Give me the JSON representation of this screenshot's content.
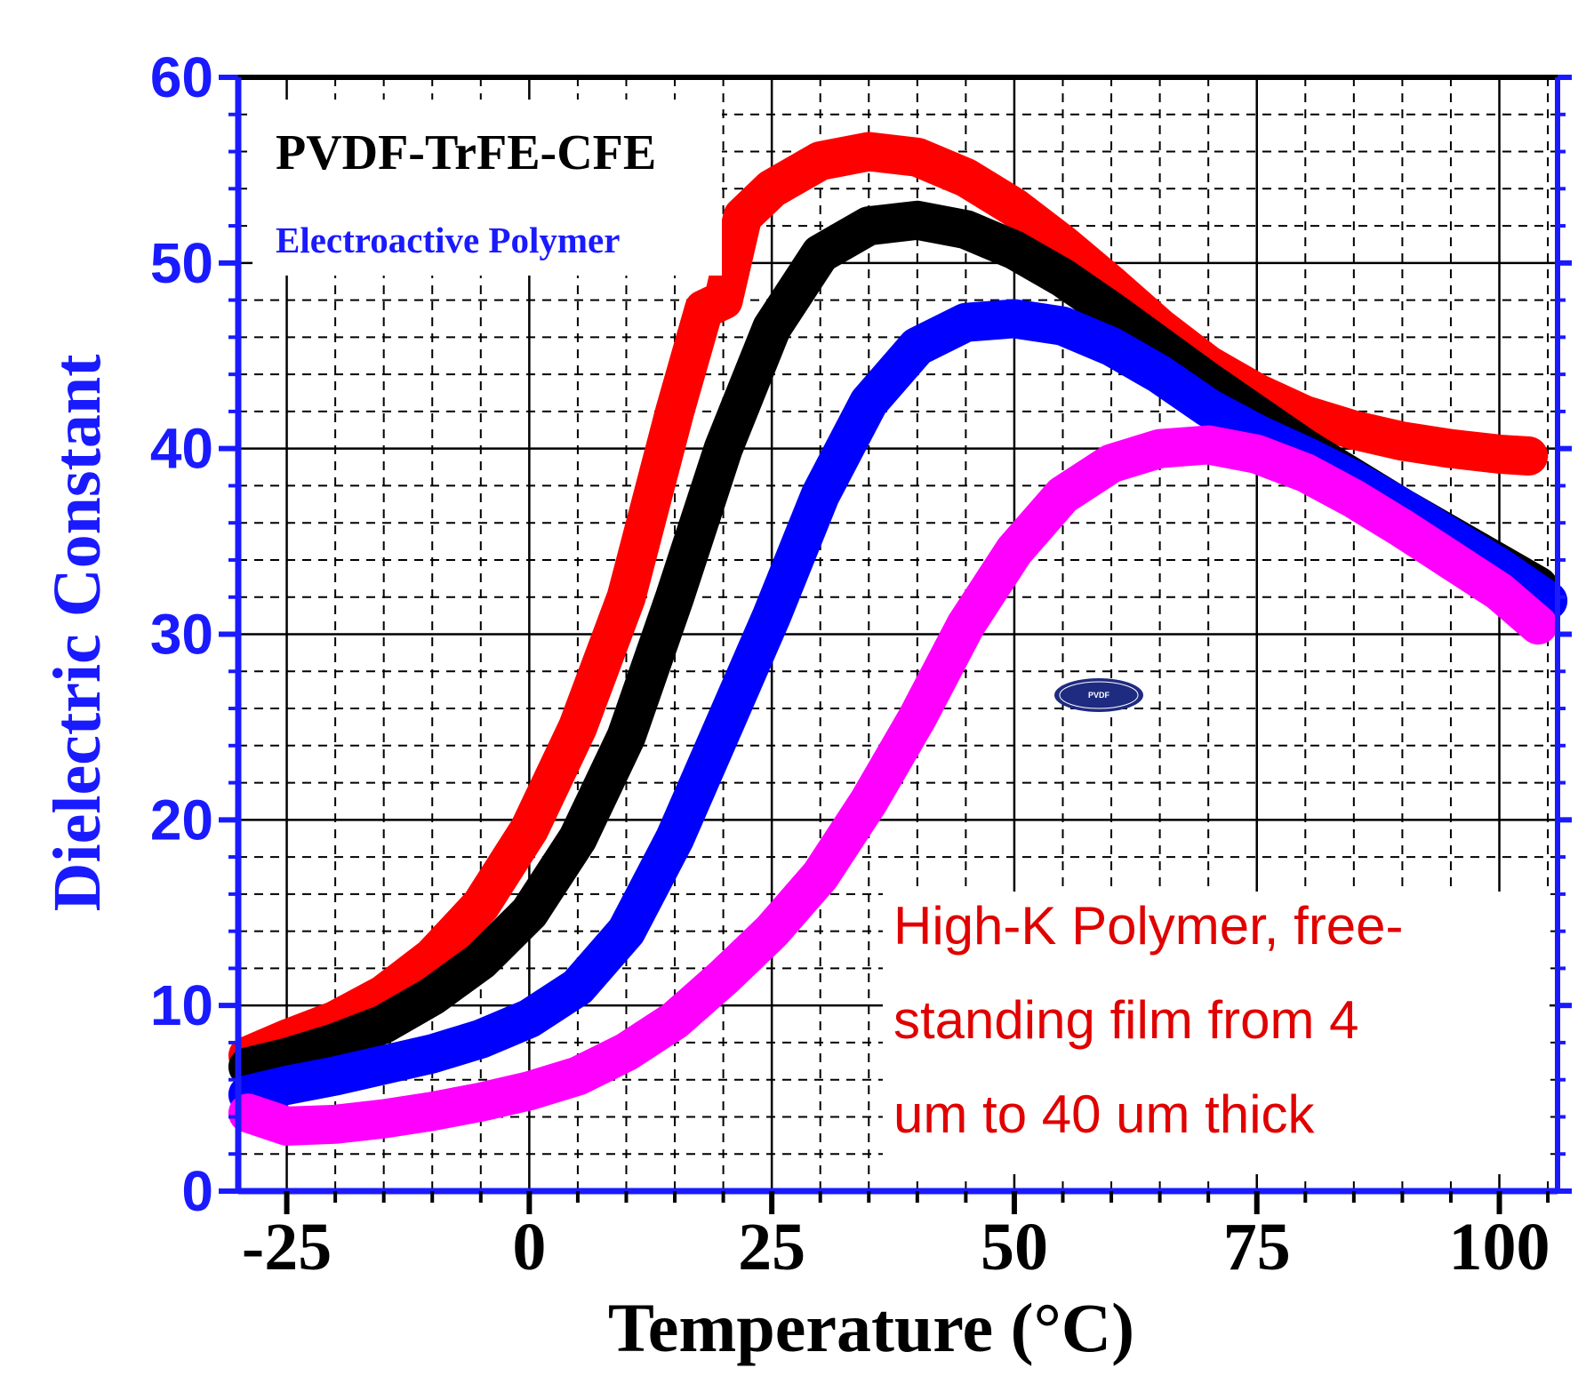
{
  "chart_data": {
    "type": "line",
    "title": "PVDF-TrFE-CFE",
    "subtitle": "Electroactive Polymer",
    "xlabel": "Temperature (°C)",
    "ylabel": "Dielectric Constant",
    "xlim": [
      -30,
      106
    ],
    "ylim": [
      0,
      60
    ],
    "x_ticks": [
      -25,
      0,
      25,
      50,
      75,
      100
    ],
    "x_tick_labels": [
      "-25",
      "0",
      "25",
      "50",
      "75",
      "100"
    ],
    "y_ticks": [
      0,
      10,
      20,
      30,
      40,
      50,
      60
    ],
    "y_tick_labels": [
      "0",
      "10",
      "20",
      "30",
      "40",
      "50",
      "60"
    ],
    "grid": true,
    "annotation": [
      "High-K Polymer, free-",
      "standing film from 4",
      "um to 40 um thick"
    ],
    "watermark": "PVDF",
    "series": [
      {
        "name": "red",
        "color": "#ff0000",
        "x": [
          -29,
          -25,
          -20,
          -15,
          -10,
          -5,
          0,
          5,
          10,
          15,
          18,
          20,
          22,
          25,
          30,
          35,
          40,
          45,
          50,
          55,
          60,
          65,
          70,
          75,
          80,
          85,
          90,
          95,
          100,
          103
        ],
        "y": [
          7.3,
          8.2,
          9.2,
          10.6,
          12.6,
          15.4,
          19.5,
          25,
          32,
          42,
          47.5,
          48,
          52.5,
          54,
          55.5,
          56,
          55.7,
          54.6,
          53,
          51,
          48.8,
          46.5,
          44.5,
          43,
          41.8,
          41,
          40.4,
          40,
          39.7,
          39.6
        ]
      },
      {
        "name": "black",
        "color": "#000000",
        "x": [
          -29,
          -25,
          -20,
          -15,
          -10,
          -5,
          0,
          5,
          10,
          15,
          20,
          25,
          30,
          35,
          40,
          45,
          50,
          55,
          60,
          65,
          70,
          75,
          80,
          85,
          90,
          95,
          100,
          104
        ],
        "y": [
          6.7,
          7.2,
          8,
          9,
          10.5,
          12.4,
          15,
          19,
          24.5,
          32,
          40,
          46.5,
          50.5,
          52,
          52.3,
          51.8,
          50.7,
          49.2,
          47.4,
          45.5,
          43.6,
          41.8,
          40,
          38.4,
          36.8,
          35.3,
          33.8,
          32.6
        ]
      },
      {
        "name": "blue",
        "color": "#0000ff",
        "x": [
          -29,
          -25,
          -20,
          -15,
          -10,
          -5,
          0,
          5,
          10,
          15,
          20,
          25,
          30,
          35,
          40,
          45,
          50,
          55,
          60,
          65,
          70,
          75,
          80,
          85,
          90,
          95,
          100,
          105
        ],
        "y": [
          5.2,
          5.7,
          6.2,
          6.8,
          7.4,
          8.2,
          9.3,
          11,
          14,
          19,
          25,
          31,
          37.5,
          42.5,
          45.5,
          46.8,
          47,
          46.6,
          45.5,
          44,
          42.2,
          40.8,
          39.6,
          38.3,
          36.8,
          35.2,
          33.6,
          31.8
        ]
      },
      {
        "name": "magenta",
        "color": "#ff00ff",
        "x": [
          -29,
          -25,
          -20,
          -15,
          -10,
          -5,
          0,
          5,
          10,
          15,
          20,
          25,
          30,
          35,
          40,
          45,
          50,
          55,
          60,
          65,
          70,
          75,
          80,
          85,
          90,
          95,
          100,
          104
        ],
        "y": [
          4.2,
          3.5,
          3.6,
          3.9,
          4.3,
          4.8,
          5.4,
          6.2,
          7.5,
          9.2,
          11.5,
          14,
          17,
          21,
          25.5,
          30.5,
          34.5,
          37.5,
          39.2,
          40,
          40.2,
          39.7,
          38.7,
          37.3,
          35.7,
          34,
          32.3,
          30.5
        ]
      }
    ]
  }
}
